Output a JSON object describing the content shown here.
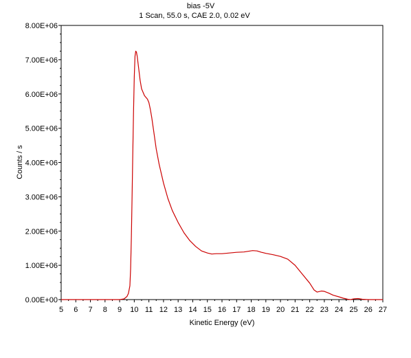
{
  "chart_data": {
    "type": "line",
    "title": "bias -5V",
    "subtitle": "1 Scan,  55.0 s,  CAE 2.0,  0.02 eV",
    "xlabel": "Kinetic Energy (eV)",
    "ylabel": "Counts / s",
    "xlim": [
      5,
      27
    ],
    "ylim": [
      0,
      8000000
    ],
    "x_ticks": [
      5,
      6,
      7,
      8,
      9,
      10,
      11,
      12,
      13,
      14,
      15,
      16,
      17,
      18,
      19,
      20,
      21,
      22,
      23,
      24,
      25,
      26,
      27
    ],
    "x_tick_labels": [
      "5",
      "6",
      "7",
      "8",
      "9",
      "10",
      "11",
      "12",
      "13",
      "14",
      "15",
      "16",
      "17",
      "18",
      "19",
      "20",
      "21",
      "22",
      "23",
      "24",
      "25",
      "26",
      "27"
    ],
    "y_ticks": [
      0,
      1000000,
      2000000,
      3000000,
      4000000,
      5000000,
      6000000,
      7000000,
      8000000
    ],
    "y_tick_labels": [
      "0.00E+00",
      "1.00E+06",
      "2.00E+06",
      "3.00E+06",
      "4.00E+06",
      "5.00E+06",
      "6.00E+06",
      "7.00E+06",
      "8.00E+06"
    ],
    "grid": false,
    "legend": "none",
    "series": [
      {
        "color": "#cc0000",
        "x": [
          5.0,
          6.0,
          7.0,
          8.0,
          9.0,
          9.3,
          9.5,
          9.6,
          9.7,
          9.75,
          9.8,
          9.85,
          9.9,
          9.95,
          10.0,
          10.05,
          10.1,
          10.15,
          10.2,
          10.3,
          10.4,
          10.5,
          10.7,
          10.9,
          11.0,
          11.1,
          11.2,
          11.3,
          11.4,
          11.5,
          11.7,
          12.0,
          12.3,
          12.6,
          13.0,
          13.4,
          13.8,
          14.2,
          14.6,
          15.0,
          15.3,
          15.6,
          16.0,
          16.5,
          17.0,
          17.5,
          17.8,
          18.1,
          18.4,
          18.7,
          19.0,
          19.5,
          20.0,
          20.5,
          21.0,
          21.5,
          22.0,
          22.3,
          22.5,
          22.8,
          23.0,
          23.3,
          23.6,
          24.0,
          24.3,
          24.6,
          24.8,
          25.0,
          25.3,
          25.6,
          26.0,
          26.5,
          27.0
        ],
        "y": [
          0,
          0,
          0,
          0,
          0,
          20000,
          90000,
          180000,
          400000,
          900000,
          1800000,
          3000000,
          4300000,
          5500000,
          6500000,
          7100000,
          7250000,
          7220000,
          7100000,
          6750000,
          6400000,
          6150000,
          5950000,
          5850000,
          5750000,
          5550000,
          5300000,
          5000000,
          4700000,
          4400000,
          3950000,
          3400000,
          2950000,
          2600000,
          2250000,
          1950000,
          1720000,
          1550000,
          1420000,
          1360000,
          1330000,
          1340000,
          1340000,
          1360000,
          1380000,
          1390000,
          1410000,
          1430000,
          1420000,
          1380000,
          1350000,
          1310000,
          1260000,
          1180000,
          1000000,
          740000,
          480000,
          280000,
          220000,
          250000,
          240000,
          190000,
          130000,
          80000,
          40000,
          10000,
          0,
          20000,
          30000,
          10000,
          0,
          0,
          0
        ]
      }
    ]
  }
}
